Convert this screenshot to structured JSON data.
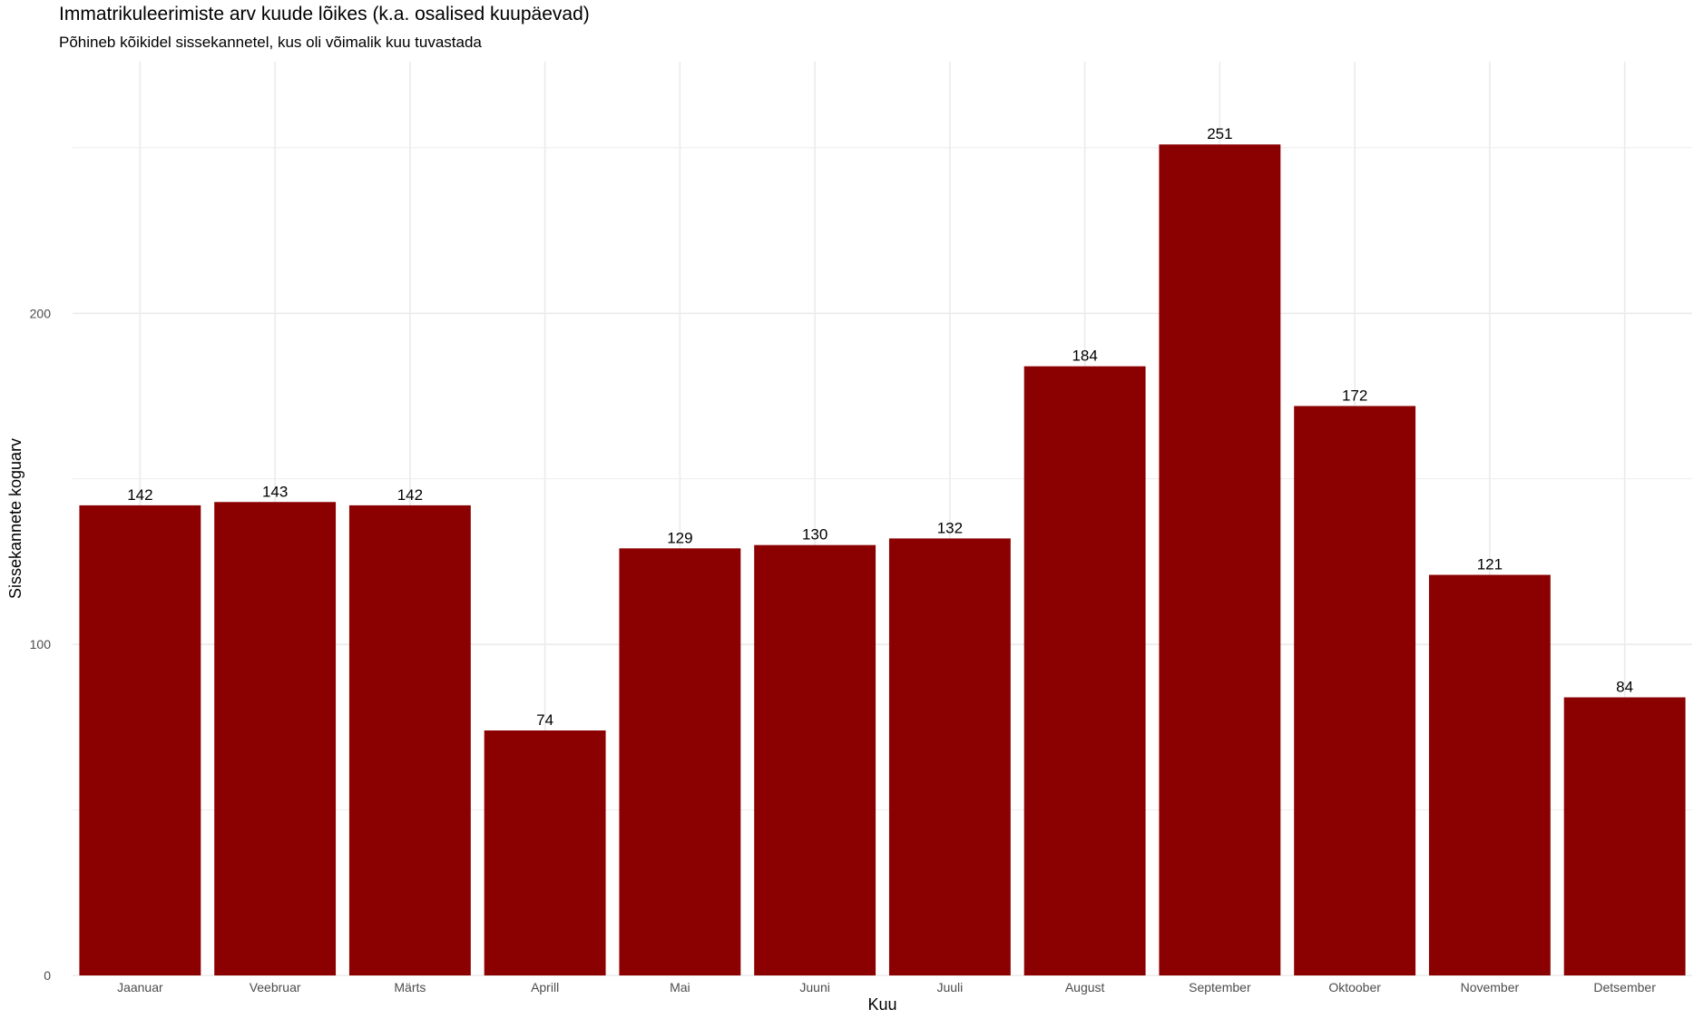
{
  "chart_data": {
    "type": "bar",
    "title": "Immatrikuleerimiste arv kuude lõikes (k.a. osalised kuupäevad)",
    "subtitle": "Põhineb kõikidel sissekannetel, kus oli võimalik kuu tuvastada",
    "xlabel": "Kuu",
    "ylabel": "Sissekannete koguarv",
    "categories": [
      "Jaanuar",
      "Veebruar",
      "Märts",
      "Aprill",
      "Mai",
      "Juuni",
      "Juuli",
      "August",
      "September",
      "Oktoober",
      "November",
      "Detsember"
    ],
    "values": [
      142,
      143,
      142,
      74,
      129,
      130,
      132,
      184,
      251,
      172,
      121,
      84
    ],
    "yticks": [
      0,
      100,
      200
    ],
    "ylim": [
      0,
      276
    ],
    "grid": true,
    "bar_color": "#8b0000",
    "grid_color": "#ebebeb"
  }
}
